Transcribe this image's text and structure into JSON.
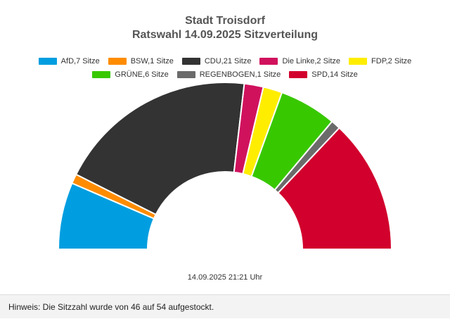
{
  "chart_data": {
    "type": "parliament",
    "title": "Stadt Troisdorf",
    "subtitle": "Ratswahl 14.09.2025 Sitzverteilung",
    "series": [
      {
        "name": "AfD",
        "seats": 7,
        "color": "#009ee0",
        "legend": "AfD,7 Sitze"
      },
      {
        "name": "BSW",
        "seats": 1,
        "color": "#ff8c00",
        "legend": "BSW,1 Sitze"
      },
      {
        "name": "CDU",
        "seats": 21,
        "color": "#333333",
        "legend": "CDU,21 Sitze"
      },
      {
        "name": "Die Linke",
        "seats": 2,
        "color": "#d0125d",
        "legend": "Die Linke,2 Sitze"
      },
      {
        "name": "FDP",
        "seats": 2,
        "color": "#ffed00",
        "legend": "FDP,2 Sitze"
      },
      {
        "name": "GRÜNE",
        "seats": 6,
        "color": "#38c800",
        "legend": "GRÜNE,6 Sitze"
      },
      {
        "name": "REGENBOGEN",
        "seats": 1,
        "color": "#6b6b6b",
        "legend": "REGENBOGEN,1 Sitze"
      },
      {
        "name": "SPD",
        "seats": 14,
        "color": "#d2002d",
        "legend": "SPD,14 Sitze"
      }
    ],
    "total_seats": 54,
    "timestamp": "14.09.2025 21:21 Uhr",
    "legend_placement": "top"
  },
  "footer": {
    "note": "Hinweis: Die Sitzzahl wurde von 46 auf 54 aufgestockt."
  }
}
